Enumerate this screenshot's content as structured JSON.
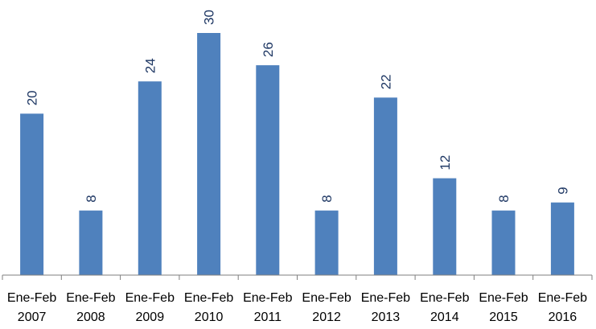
{
  "chart_data": {
    "type": "bar",
    "categories": [
      [
        "Ene-Feb",
        "2007"
      ],
      [
        "Ene-Feb",
        "2008"
      ],
      [
        "Ene-Feb",
        "2009"
      ],
      [
        "Ene-Feb",
        "2010"
      ],
      [
        "Ene-Feb",
        "2011"
      ],
      [
        "Ene-Feb",
        "2012"
      ],
      [
        "Ene-Feb",
        "2013"
      ],
      [
        "Ene-Feb",
        "2014"
      ],
      [
        "Ene-Feb",
        "2015"
      ],
      [
        "Ene-Feb",
        "2016"
      ]
    ],
    "values": [
      20,
      8,
      24,
      30,
      26,
      8,
      22,
      12,
      8,
      9
    ],
    "data_labels": [
      "20",
      "8",
      "24",
      "30",
      "26",
      "8",
      "22",
      "12",
      "8",
      "9"
    ],
    "title": "",
    "xlabel": "",
    "ylabel": "",
    "ylim": [
      0,
      30
    ],
    "grid": false,
    "legend": "none",
    "colors": {
      "bar": "#4f81bd",
      "label": "#1f3864",
      "axis": "#7f7f7f",
      "tick_text": "#000000"
    }
  }
}
